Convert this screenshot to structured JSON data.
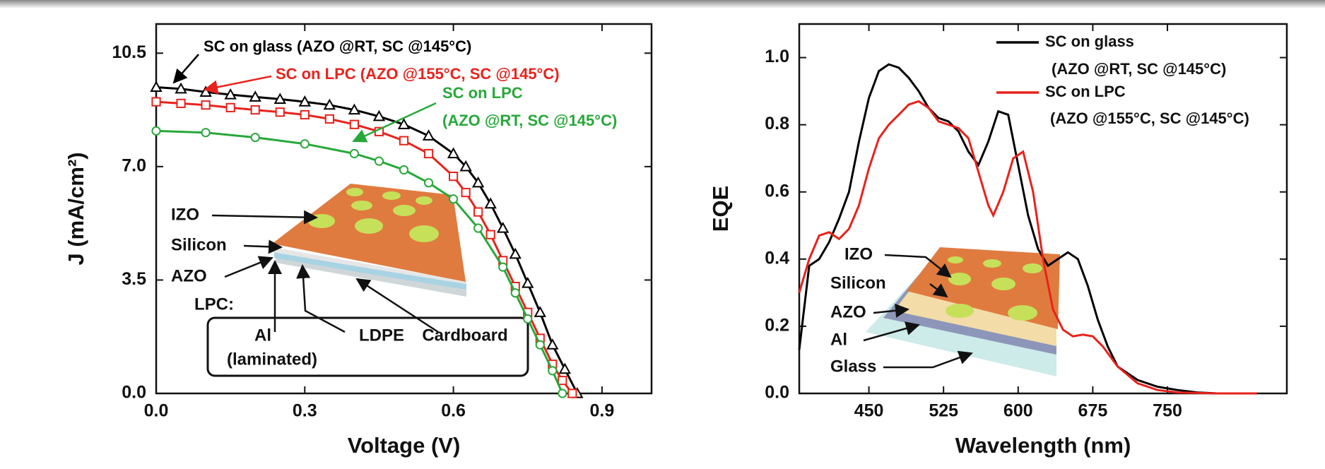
{
  "chart_data": [
    {
      "type": "line",
      "xlabel": "Voltage (V)",
      "ylabel": "J (mA/cm²)",
      "xlim": [
        0,
        1.0
      ],
      "ylim": [
        0,
        11.4
      ],
      "xticks": [
        {
          "value": 0,
          "label": "0.0"
        },
        0.3,
        0.6,
        0.9
      ],
      "yticks": [
        {
          "value": 0,
          "label": "0.0"
        },
        3.5,
        {
          "value": 7,
          "label": "7.0"
        },
        10.5
      ],
      "series": [
        {
          "name": "SC on glass (AZO @RT, SC @145°C)",
          "color": "#000000",
          "marker": "triangle",
          "x": [
            0,
            0.05,
            0.1,
            0.15,
            0.2,
            0.25,
            0.3,
            0.35,
            0.4,
            0.45,
            0.5,
            0.55,
            0.6,
            0.625,
            0.65,
            0.675,
            0.7,
            0.725,
            0.75,
            0.775,
            0.8,
            0.825,
            0.85
          ],
          "values": [
            9.45,
            9.4,
            9.3,
            9.22,
            9.15,
            9.08,
            9.0,
            8.9,
            8.75,
            8.55,
            8.3,
            7.95,
            7.4,
            7.0,
            6.5,
            5.85,
            5.1,
            4.3,
            3.4,
            2.5,
            1.5,
            0.75,
            0
          ]
        },
        {
          "name": "SC on LPC (AZO @155°C, SC @145°C)",
          "color": "#e8221c",
          "marker": "square",
          "x": [
            0,
            0.05,
            0.1,
            0.15,
            0.2,
            0.25,
            0.3,
            0.35,
            0.4,
            0.45,
            0.5,
            0.55,
            0.6,
            0.625,
            0.65,
            0.675,
            0.7,
            0.725,
            0.75,
            0.775,
            0.8,
            0.82,
            0.84
          ],
          "values": [
            9.0,
            8.95,
            8.9,
            8.82,
            8.75,
            8.68,
            8.6,
            8.47,
            8.3,
            8.08,
            7.8,
            7.4,
            6.7,
            6.2,
            5.6,
            4.9,
            4.1,
            3.3,
            2.5,
            1.7,
            0.9,
            0.4,
            0
          ]
        },
        {
          "name": "SC on LPC",
          "note": "(AZO @RT, SC @145°C)",
          "color": "#27a83a",
          "marker": "circle",
          "x": [
            0,
            0.1,
            0.2,
            0.3,
            0.4,
            0.45,
            0.5,
            0.55,
            0.6,
            0.65,
            0.7,
            0.725,
            0.75,
            0.775,
            0.8,
            0.82
          ],
          "values": [
            8.1,
            8.05,
            7.9,
            7.7,
            7.4,
            7.17,
            6.9,
            6.5,
            6.0,
            5.1,
            3.9,
            3.1,
            2.3,
            1.5,
            0.7,
            0
          ]
        }
      ],
      "inset_labels": [
        "IZO",
        "Silicon",
        "AZO",
        "LPC:",
        "Al",
        "(laminated)",
        "LDPE",
        "Cardboard"
      ]
    },
    {
      "type": "line",
      "xlabel": "Wavelength (nm)",
      "ylabel": "EQE",
      "xlim": [
        380,
        870
      ],
      "ylim": [
        0,
        1.1
      ],
      "xticks": [
        450,
        525,
        600,
        675,
        750
      ],
      "yticks": [
        {
          "value": 0,
          "label": "0.0"
        },
        0.2,
        0.4,
        0.6,
        0.8,
        {
          "value": 1,
          "label": "1.0"
        }
      ],
      "series": [
        {
          "name": "SC on glass",
          "note": "(AZO @RT, SC @145°C)",
          "color": "#000000",
          "x": [
            380,
            390,
            400,
            410,
            420,
            430,
            440,
            450,
            460,
            470,
            480,
            490,
            500,
            510,
            520,
            530,
            540,
            550,
            560,
            570,
            580,
            590,
            600,
            610,
            620,
            630,
            640,
            650,
            660,
            670,
            680,
            690,
            700,
            720,
            740,
            760,
            780,
            800,
            840
          ],
          "values": [
            0.13,
            0.38,
            0.4,
            0.45,
            0.52,
            0.6,
            0.75,
            0.88,
            0.96,
            0.98,
            0.97,
            0.94,
            0.9,
            0.85,
            0.82,
            0.81,
            0.78,
            0.72,
            0.68,
            0.75,
            0.84,
            0.83,
            0.68,
            0.53,
            0.43,
            0.38,
            0.4,
            0.42,
            0.4,
            0.32,
            0.22,
            0.14,
            0.08,
            0.04,
            0.02,
            0.01,
            0.003,
            0,
            0
          ]
        },
        {
          "name": "SC on LPC",
          "note": "(AZO @155°C, SC @145°C)",
          "color": "#e8221c",
          "x": [
            380,
            390,
            400,
            410,
            420,
            430,
            440,
            450,
            460,
            470,
            480,
            490,
            500,
            510,
            520,
            530,
            540,
            550,
            560,
            570,
            575,
            585,
            595,
            605,
            615,
            625,
            635,
            645,
            655,
            665,
            675,
            685,
            700,
            720,
            740,
            760,
            800,
            840
          ],
          "values": [
            0.3,
            0.4,
            0.47,
            0.48,
            0.46,
            0.49,
            0.56,
            0.67,
            0.76,
            0.8,
            0.83,
            0.86,
            0.87,
            0.85,
            0.81,
            0.8,
            0.79,
            0.76,
            0.66,
            0.56,
            0.53,
            0.6,
            0.7,
            0.72,
            0.6,
            0.4,
            0.25,
            0.19,
            0.17,
            0.175,
            0.17,
            0.14,
            0.08,
            0.03,
            0.01,
            0.003,
            0,
            0
          ]
        }
      ],
      "inset_labels": [
        "IZO",
        "Silicon",
        "AZO",
        "Al",
        "Glass"
      ]
    }
  ]
}
